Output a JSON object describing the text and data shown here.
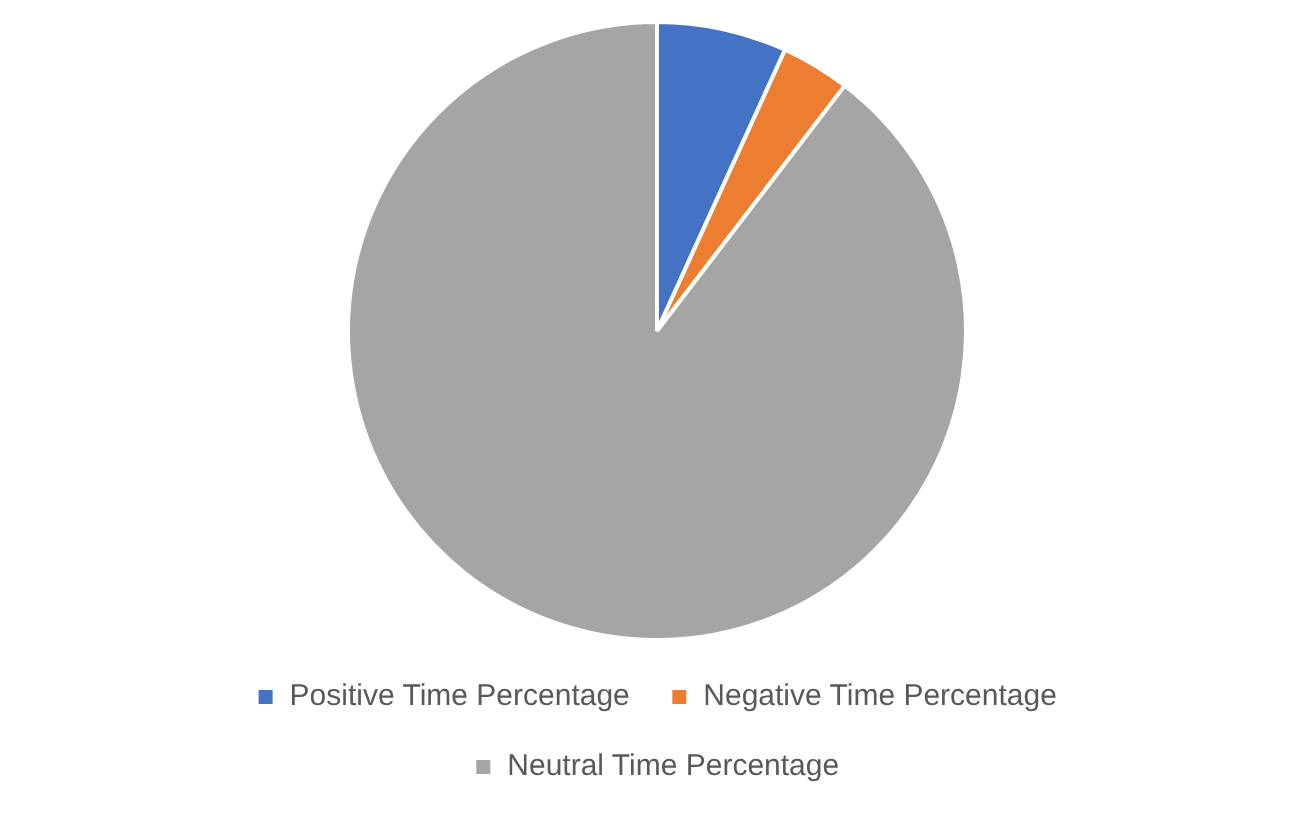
{
  "chart_data": {
    "type": "pie",
    "categories": [
      "Positive Time Percentage",
      "Negative Time Percentage",
      "Neutral Time Percentage"
    ],
    "values": [
      6.8,
      3.6,
      89.6
    ],
    "colors": [
      "#4472c4",
      "#ed7d31",
      "#a5a5a5"
    ],
    "legend": "bottom"
  }
}
